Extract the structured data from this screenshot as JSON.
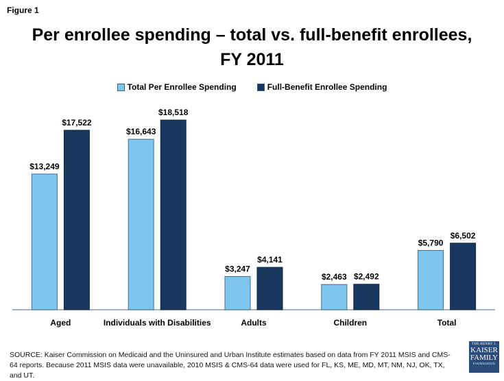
{
  "figure_label": "Figure 1",
  "title_line1": "Per enrollee spending – total vs. full-benefit enrollees,",
  "title_line2": "FY 2011",
  "source": "SOURCE: Kaiser Commission on Medicaid and the Uninsured and Urban Institute estimates based on data from FY 2011 MSIS and CMS-64 reports. Because 2011 MSIS data were unavailable, 2010 MSIS & CMS-64 data were used for FL, KS, ME, MD, MT, NM, NJ, OK, TX, and UT.",
  "logo": {
    "line1": "THE HENRY J.",
    "line2": "KAISER",
    "line3": "FAMILY",
    "line4": "FOUNDATION"
  },
  "colors": {
    "total": "#7fc6ec",
    "full_benefit": "#17375e",
    "axis": "#8497b0"
  },
  "chart_data": {
    "type": "bar",
    "title": "Per enrollee spending – total vs. full-benefit enrollees, FY 2011",
    "xlabel": "",
    "ylabel": "",
    "ylim": [
      0,
      20000
    ],
    "grid": false,
    "legend_position": "top-center",
    "categories": [
      "Aged",
      "Individuals with Disabilities",
      "Adults",
      "Children",
      "Total"
    ],
    "series": [
      {
        "name": "Total Per Enrollee Spending",
        "values": [
          13249,
          16643,
          3247,
          2463,
          5790
        ],
        "labels": [
          "$13,249",
          "$16,643",
          "$3,247",
          "$2,463",
          "$5,790"
        ]
      },
      {
        "name": "Full-Benefit Enrollee Spending",
        "values": [
          17522,
          18518,
          4141,
          2492,
          6502
        ],
        "labels": [
          "$17,522",
          "$18,518",
          "$4,141",
          "$2,492",
          "$6,502"
        ]
      }
    ]
  }
}
